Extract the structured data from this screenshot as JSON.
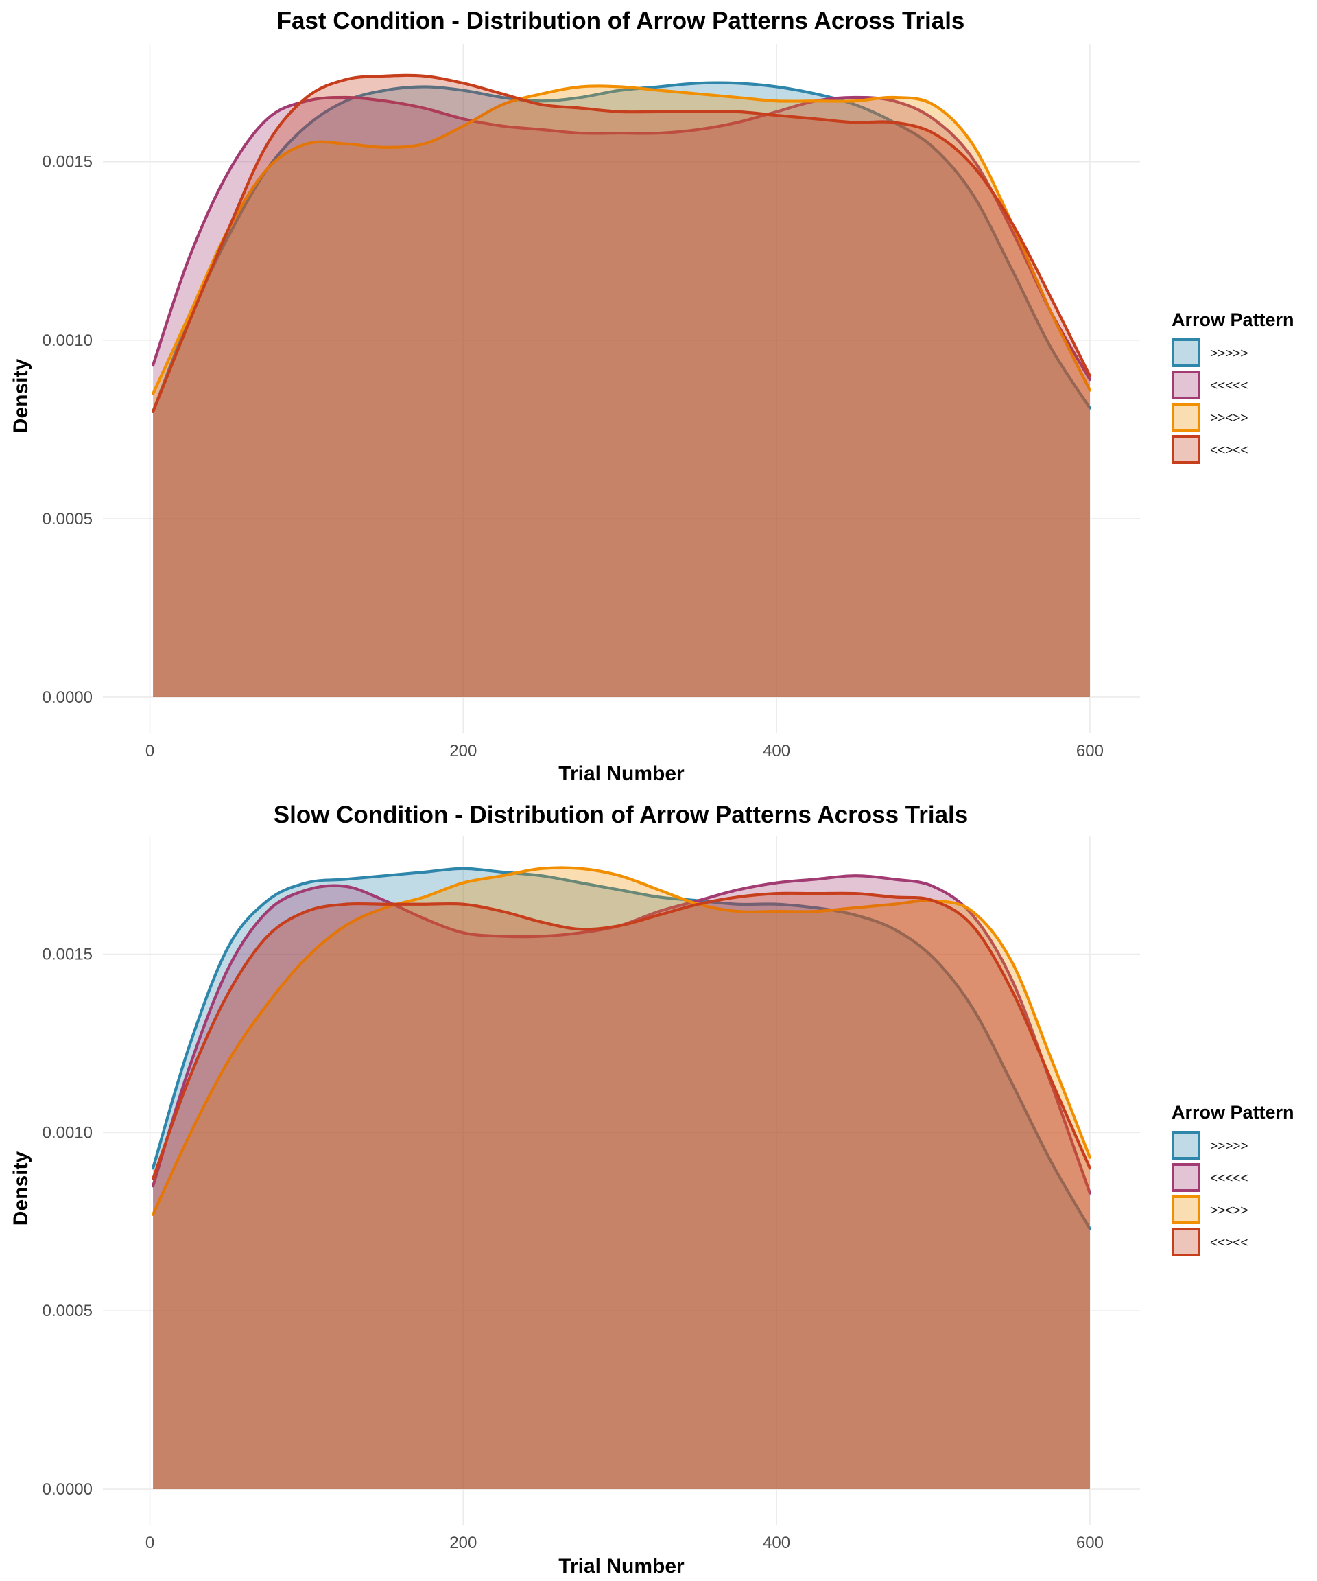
{
  "colors": {
    ">>>>>": "#2E86AB",
    "<<<<<": "#A23B72",
    ">><>>": "#F18F01",
    "<<><<": "#C73E1D"
  },
  "chart_data": [
    {
      "type": "area",
      "title": "Fast Condition - Distribution of Arrow Patterns Across Trials",
      "xlabel": "Trial Number",
      "ylabel": "Density",
      "xlim": [
        -30,
        632
      ],
      "ylim": [
        -0.0001,
        0.00183
      ],
      "xticks": [
        0,
        200,
        400,
        600
      ],
      "yticks": [
        0.0,
        0.0005,
        0.001,
        0.0015
      ],
      "xtick_labels": [
        "0",
        "200",
        "400",
        "600"
      ],
      "ytick_labels": [
        "0.0000",
        "0.0005",
        "0.0010",
        "0.0015"
      ],
      "grid": true,
      "legend": {
        "title": "Arrow Pattern",
        "position": "right"
      },
      "x": [
        2,
        25,
        50,
        75,
        100,
        125,
        150,
        175,
        200,
        225,
        250,
        275,
        300,
        325,
        350,
        375,
        400,
        425,
        450,
        475,
        500,
        525,
        550,
        575,
        600
      ],
      "series": [
        {
          "name": ">>>>>",
          "values": [
            0.0008,
            0.00106,
            0.00129,
            0.00148,
            0.0016,
            0.00167,
            0.0017,
            0.00171,
            0.0017,
            0.00168,
            0.00167,
            0.00168,
            0.0017,
            0.00171,
            0.00172,
            0.00172,
            0.00171,
            0.00169,
            0.00166,
            0.00161,
            0.00154,
            0.00141,
            0.0012,
            0.00098,
            0.00081
          ]
        },
        {
          "name": "<<<<<",
          "values": [
            0.00093,
            0.00123,
            0.00147,
            0.00162,
            0.00167,
            0.00168,
            0.00167,
            0.00165,
            0.00162,
            0.0016,
            0.00159,
            0.00158,
            0.00158,
            0.00158,
            0.00159,
            0.00161,
            0.00164,
            0.00167,
            0.00168,
            0.00167,
            0.00162,
            0.00151,
            0.00131,
            0.00108,
            0.00089
          ]
        },
        {
          "name": ">><>>",
          "values": [
            0.00085,
            0.00107,
            0.00131,
            0.00148,
            0.00155,
            0.00155,
            0.00154,
            0.00155,
            0.0016,
            0.00166,
            0.00169,
            0.00171,
            0.00171,
            0.0017,
            0.00169,
            0.00168,
            0.00167,
            0.00167,
            0.00167,
            0.00168,
            0.00166,
            0.00155,
            0.00133,
            0.00108,
            0.00086
          ]
        },
        {
          "name": "<<><<",
          "values": [
            0.0008,
            0.00105,
            0.00131,
            0.00155,
            0.00168,
            0.00173,
            0.00174,
            0.00174,
            0.00172,
            0.00169,
            0.00166,
            0.00165,
            0.00164,
            0.00164,
            0.00164,
            0.00164,
            0.00163,
            0.00162,
            0.00161,
            0.00161,
            0.00158,
            0.00149,
            0.00133,
            0.00112,
            0.0009
          ]
        }
      ]
    },
    {
      "type": "area",
      "title": "Slow Condition - Distribution of Arrow Patterns Across Trials",
      "xlabel": "Trial Number",
      "ylabel": "Density",
      "xlim": [
        -30,
        632
      ],
      "ylim": [
        -0.0001,
        0.00183
      ],
      "xticks": [
        0,
        200,
        400,
        600
      ],
      "yticks": [
        0.0,
        0.0005,
        0.001,
        0.0015
      ],
      "xtick_labels": [
        "0",
        "200",
        "400",
        "600"
      ],
      "ytick_labels": [
        "0.0000",
        "0.0005",
        "0.0010",
        "0.0015"
      ],
      "grid": true,
      "legend": {
        "title": "Arrow Pattern",
        "position": "right"
      },
      "x": [
        2,
        25,
        50,
        75,
        100,
        125,
        150,
        175,
        200,
        225,
        250,
        275,
        300,
        325,
        350,
        375,
        400,
        425,
        450,
        475,
        500,
        525,
        550,
        575,
        600
      ],
      "series": [
        {
          "name": ">>>>>",
          "values": [
            0.0009,
            0.00124,
            0.00152,
            0.00165,
            0.0017,
            0.00171,
            0.00172,
            0.00173,
            0.00174,
            0.00173,
            0.00172,
            0.0017,
            0.00168,
            0.00166,
            0.00165,
            0.00164,
            0.00164,
            0.00163,
            0.00161,
            0.00157,
            0.00149,
            0.00135,
            0.00114,
            0.00092,
            0.00073
          ]
        },
        {
          "name": "<<<<<",
          "values": [
            0.00085,
            0.00118,
            0.00146,
            0.00162,
            0.00168,
            0.00169,
            0.00165,
            0.0016,
            0.00156,
            0.00155,
            0.00155,
            0.00156,
            0.00158,
            0.00162,
            0.00165,
            0.00168,
            0.0017,
            0.00171,
            0.00172,
            0.00171,
            0.00169,
            0.00161,
            0.00143,
            0.00114,
            0.00083
          ]
        },
        {
          "name": ">><>>",
          "values": [
            0.00077,
            0.00099,
            0.0012,
            0.00136,
            0.00149,
            0.00158,
            0.00163,
            0.00166,
            0.0017,
            0.00172,
            0.00174,
            0.00174,
            0.00172,
            0.00168,
            0.00164,
            0.00162,
            0.00162,
            0.00162,
            0.00163,
            0.00164,
            0.00165,
            0.00162,
            0.00148,
            0.00121,
            0.00093
          ]
        },
        {
          "name": "<<><<",
          "values": [
            0.00087,
            0.00115,
            0.00139,
            0.00155,
            0.00162,
            0.00164,
            0.00164,
            0.00164,
            0.00164,
            0.00162,
            0.00159,
            0.00157,
            0.00158,
            0.00161,
            0.00164,
            0.00166,
            0.00167,
            0.00167,
            0.00167,
            0.00166,
            0.00165,
            0.00158,
            0.0014,
            0.00115,
            0.0009
          ]
        }
      ]
    }
  ]
}
